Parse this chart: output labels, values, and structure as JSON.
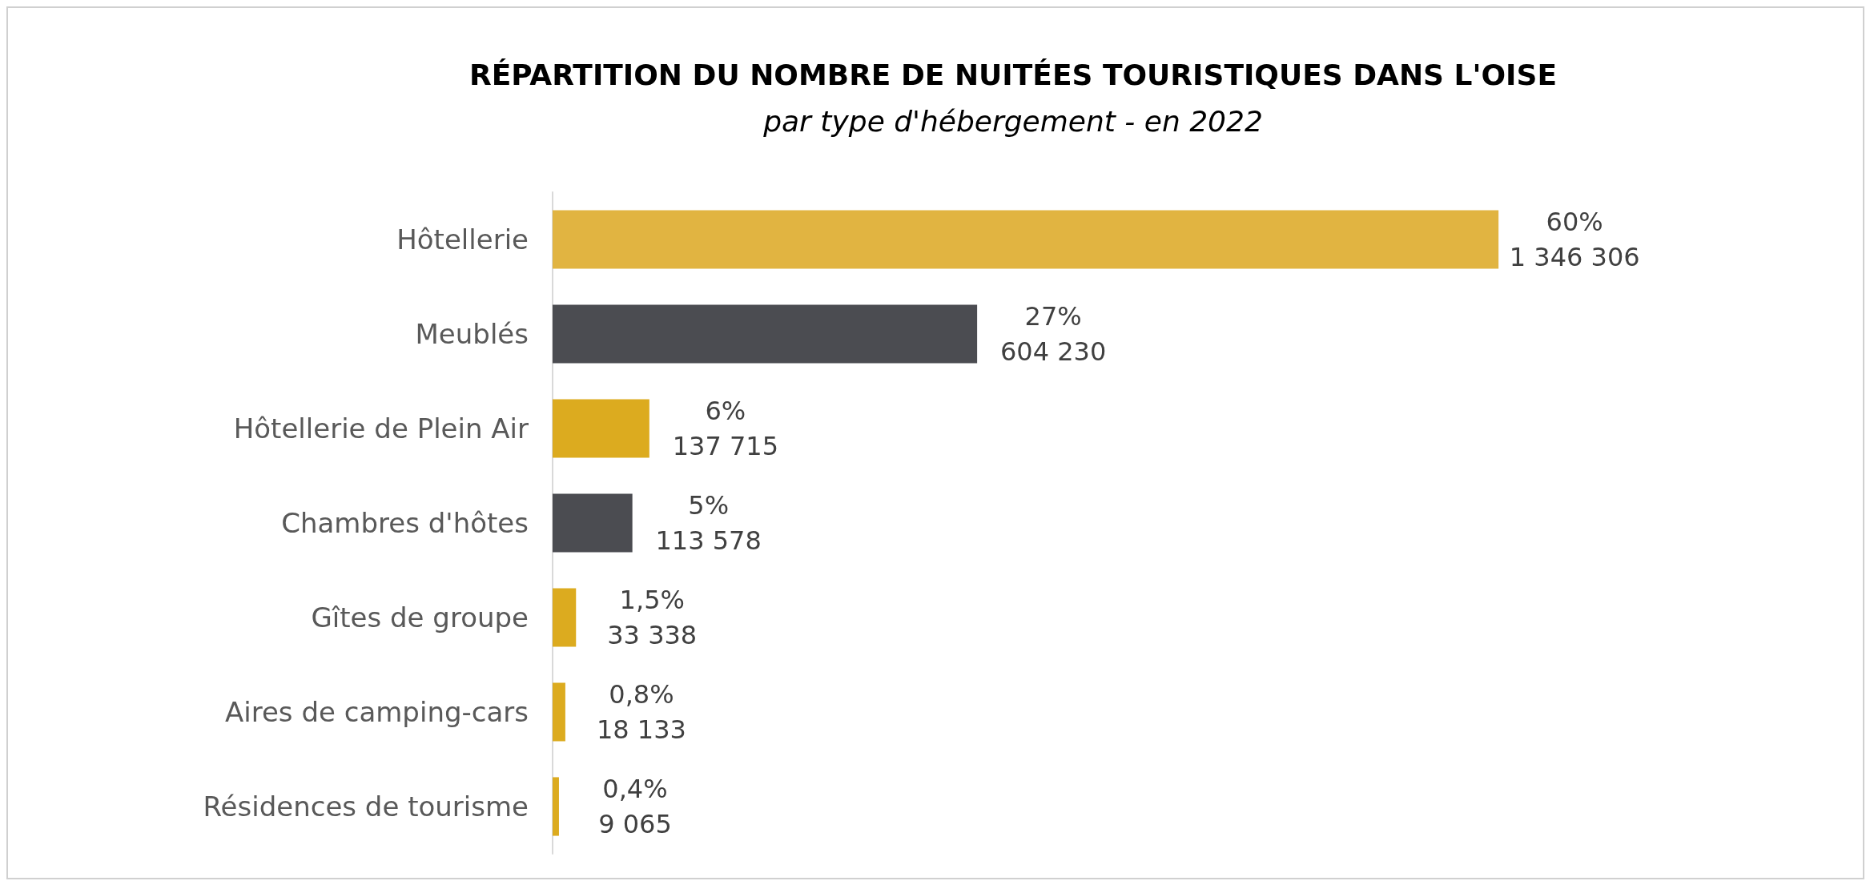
{
  "chart_data": {
    "type": "bar",
    "orientation": "horizontal",
    "title": "RÉPARTITION DU NOMBRE DE NUITÉES TOURISTIQUES DANS L'OISE",
    "subtitle": "par type d'hébergement - en 2022",
    "categories": [
      "Hôtellerie",
      "Meublés",
      "Hôtellerie de Plein Air",
      "Chambres d'hôtes",
      "Gîtes de groupe",
      "Aires de camping-cars",
      "Résidences de tourisme"
    ],
    "values": [
      1346306,
      604230,
      137715,
      113578,
      33338,
      18133,
      9065
    ],
    "colors": [
      "#e1b441",
      "#4b4c51",
      "#dcab1f",
      "#4b4c51",
      "#dcab1f",
      "#dcab1f",
      "#dcab1f"
    ],
    "value_labels": [
      "60%\n1 346 306",
      "27%\n604 230",
      "6%\n137 715",
      "5%\n113 578",
      "1,5%\n33 338",
      "0,8%\n18 133",
      "0,4%\n9 065"
    ]
  }
}
